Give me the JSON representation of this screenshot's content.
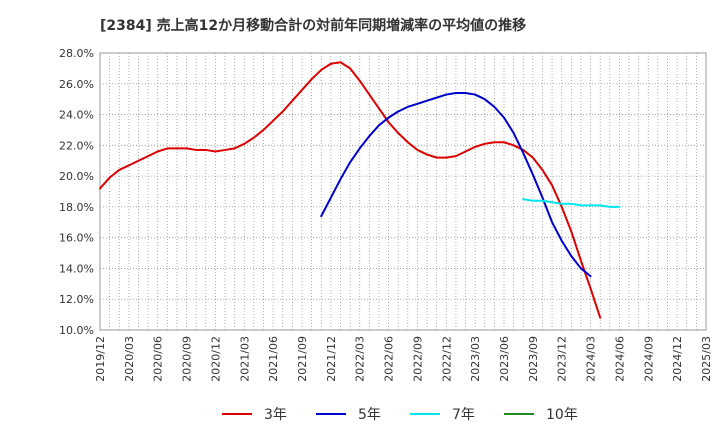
{
  "chart_data": {
    "type": "line",
    "title": "[2384]  売上高12か月移動合計の対前年同期増減率の平均値の推移",
    "xlabel": "",
    "ylabel": "",
    "ylim": [
      10.0,
      28.0
    ],
    "y_ticks": [
      "10.0%",
      "12.0%",
      "14.0%",
      "16.0%",
      "18.0%",
      "20.0%",
      "22.0%",
      "24.0%",
      "26.0%",
      "28.0%"
    ],
    "x_ticks": [
      "2019/12",
      "2020/03",
      "2020/06",
      "2020/09",
      "2020/12",
      "2021/03",
      "2021/06",
      "2021/09",
      "2021/12",
      "2022/03",
      "2022/06",
      "2022/09",
      "2022/12",
      "2023/03",
      "2023/06",
      "2023/09",
      "2023/12",
      "2024/03",
      "2024/06",
      "2024/09",
      "2024/12",
      "2025/03"
    ],
    "grid": true,
    "legend_position": "bottom",
    "series": [
      {
        "name": "3年",
        "color": "#dd0000",
        "start_index": 0,
        "values": [
          19.2,
          19.9,
          20.4,
          20.7,
          21.0,
          21.3,
          21.6,
          21.8,
          21.8,
          21.8,
          21.7,
          21.7,
          21.6,
          21.7,
          21.8,
          22.1,
          22.5,
          23.0,
          23.6,
          24.2,
          24.9,
          25.6,
          26.3,
          26.9,
          27.3,
          27.4,
          27.0,
          26.2,
          25.3,
          24.4,
          23.5,
          22.8,
          22.2,
          21.7,
          21.4,
          21.2,
          21.2,
          21.3,
          21.6,
          21.9,
          22.1,
          22.2,
          22.2,
          22.0,
          21.7,
          21.2,
          20.4,
          19.4,
          18.0,
          16.4,
          14.5,
          12.7,
          10.8
        ]
      },
      {
        "name": "5年",
        "color": "#0000cc",
        "start_index": 23,
        "values": [
          17.4,
          18.6,
          19.8,
          20.9,
          21.8,
          22.6,
          23.3,
          23.8,
          24.2,
          24.5,
          24.7,
          24.9,
          25.1,
          25.3,
          25.4,
          25.4,
          25.3,
          25.0,
          24.5,
          23.8,
          22.8,
          21.5,
          20.1,
          18.6,
          17.0,
          15.8,
          14.8,
          14.0,
          13.5
        ]
      },
      {
        "name": "7年",
        "color": "#00e5ee",
        "start_index": 44,
        "values": [
          18.5,
          18.4,
          18.4,
          18.3,
          18.2,
          18.2,
          18.1,
          18.1,
          18.1,
          18.0,
          18.0
        ]
      },
      {
        "name": "10年",
        "color": "#228b22",
        "start_index": 0,
        "values": []
      }
    ]
  }
}
